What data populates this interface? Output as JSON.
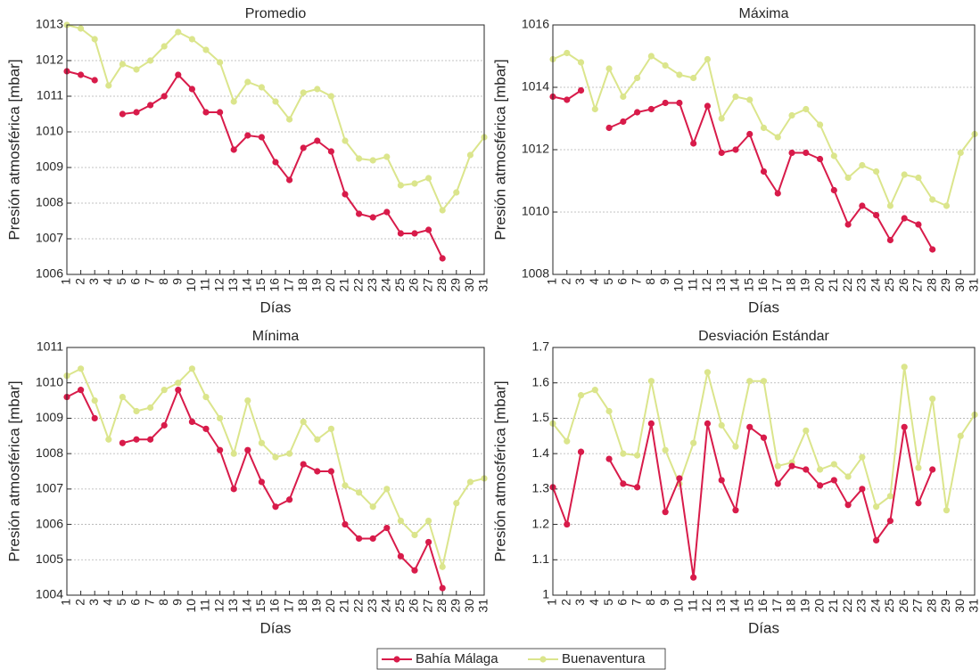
{
  "chart_data": [
    {
      "type": "line",
      "title": "Promedio",
      "xlabel": "Días",
      "ylabel": "Presión atmosférica [mbar]",
      "x": [
        1,
        2,
        3,
        4,
        5,
        6,
        7,
        8,
        9,
        10,
        11,
        12,
        13,
        14,
        15,
        16,
        17,
        18,
        19,
        20,
        21,
        22,
        23,
        24,
        25,
        26,
        27,
        28,
        29,
        30,
        31
      ],
      "xlim": [
        1,
        31
      ],
      "xticks": [
        1,
        2,
        3,
        4,
        5,
        6,
        7,
        8,
        9,
        10,
        11,
        12,
        13,
        14,
        15,
        16,
        17,
        18,
        19,
        20,
        21,
        22,
        23,
        24,
        25,
        26,
        27,
        28,
        29,
        30,
        31
      ],
      "ylim": [
        1006,
        1013
      ],
      "yticks": [
        1006,
        1007,
        1008,
        1009,
        1010,
        1011,
        1012,
        1013
      ],
      "grid": true,
      "series": [
        {
          "name": "Bahía Málaga",
          "color": "#d81b4a",
          "values": [
            1011.7,
            1011.6,
            1011.45,
            null,
            1010.5,
            1010.55,
            1010.75,
            1011.0,
            1011.6,
            1011.2,
            1010.55,
            1010.55,
            1009.5,
            1009.9,
            1009.85,
            1009.15,
            1008.65,
            1009.55,
            1009.75,
            1009.45,
            1008.25,
            1007.7,
            1007.6,
            1007.75,
            1007.15,
            1007.15,
            1007.25,
            1006.45,
            null,
            null,
            null
          ]
        },
        {
          "name": "Buenaventura",
          "color": "#dbe58c",
          "values": [
            1013.0,
            1012.9,
            1012.6,
            1011.3,
            1011.9,
            1011.75,
            1012.0,
            1012.4,
            1012.8,
            1012.6,
            1012.3,
            1011.95,
            1010.85,
            1011.4,
            1011.25,
            1010.85,
            1010.35,
            1011.1,
            1011.2,
            1011.0,
            1009.75,
            1009.25,
            1009.2,
            1009.3,
            1008.5,
            1008.55,
            1008.7,
            1007.8,
            1008.3,
            1009.35,
            1009.85
          ]
        }
      ]
    },
    {
      "type": "line",
      "title": "Máxima",
      "xlabel": "Días",
      "ylabel": "Presión atmosférica [mbar]",
      "x": [
        1,
        2,
        3,
        4,
        5,
        6,
        7,
        8,
        9,
        10,
        11,
        12,
        13,
        14,
        15,
        16,
        17,
        18,
        19,
        20,
        21,
        22,
        23,
        24,
        25,
        26,
        27,
        28,
        29,
        30,
        31
      ],
      "xlim": [
        1,
        31
      ],
      "xticks": [
        1,
        2,
        3,
        4,
        5,
        6,
        7,
        8,
        9,
        10,
        11,
        12,
        13,
        14,
        15,
        16,
        17,
        18,
        19,
        20,
        21,
        22,
        23,
        24,
        25,
        26,
        27,
        28,
        29,
        30,
        31
      ],
      "ylim": [
        1008,
        1016
      ],
      "yticks": [
        1008,
        1010,
        1012,
        1014,
        1016
      ],
      "grid": true,
      "series": [
        {
          "name": "Bahía Málaga",
          "color": "#d81b4a",
          "values": [
            1013.7,
            1013.6,
            1013.9,
            null,
            1012.7,
            1012.9,
            1013.2,
            1013.3,
            1013.5,
            1013.5,
            1012.2,
            1013.4,
            1011.9,
            1012.0,
            1012.5,
            1011.3,
            1010.6,
            1011.9,
            1011.9,
            1011.7,
            1010.7,
            1009.6,
            1010.2,
            1009.9,
            1009.1,
            1009.8,
            1009.6,
            1008.8,
            null,
            null,
            null
          ]
        },
        {
          "name": "Buenaventura",
          "color": "#dbe58c",
          "values": [
            1014.9,
            1015.1,
            1014.8,
            1013.3,
            1014.6,
            1013.7,
            1014.3,
            1015.0,
            1014.7,
            1014.4,
            1014.3,
            1014.9,
            1013.0,
            1013.7,
            1013.6,
            1012.7,
            1012.4,
            1013.1,
            1013.3,
            1012.8,
            1011.8,
            1011.1,
            1011.5,
            1011.3,
            1010.2,
            1011.2,
            1011.1,
            1010.4,
            1010.2,
            1011.9,
            1012.5
          ]
        }
      ]
    },
    {
      "type": "line",
      "title": "Mínima",
      "xlabel": "Días",
      "ylabel": "Presión atmosférica [mbar]",
      "x": [
        1,
        2,
        3,
        4,
        5,
        6,
        7,
        8,
        9,
        10,
        11,
        12,
        13,
        14,
        15,
        16,
        17,
        18,
        19,
        20,
        21,
        22,
        23,
        24,
        25,
        26,
        27,
        28,
        29,
        30,
        31
      ],
      "xlim": [
        1,
        31
      ],
      "xticks": [
        1,
        2,
        3,
        4,
        5,
        6,
        7,
        8,
        9,
        10,
        11,
        12,
        13,
        14,
        15,
        16,
        17,
        18,
        19,
        20,
        21,
        22,
        23,
        24,
        25,
        26,
        27,
        28,
        29,
        30,
        31
      ],
      "ylim": [
        1004,
        1011
      ],
      "yticks": [
        1004,
        1005,
        1006,
        1007,
        1008,
        1009,
        1010,
        1011
      ],
      "grid": true,
      "series": [
        {
          "name": "Bahía Málaga",
          "color": "#d81b4a",
          "values": [
            1009.6,
            1009.8,
            1009.0,
            null,
            1008.3,
            1008.4,
            1008.4,
            1008.8,
            1009.8,
            1008.9,
            1008.7,
            1008.1,
            1007.0,
            1008.1,
            1007.2,
            1006.5,
            1006.7,
            1007.7,
            1007.5,
            1007.5,
            1006.0,
            1005.6,
            1005.6,
            1005.9,
            1005.1,
            1004.7,
            1005.5,
            1004.2,
            null,
            null,
            null
          ]
        },
        {
          "name": "Buenaventura",
          "color": "#dbe58c",
          "values": [
            1010.2,
            1010.4,
            1009.5,
            1008.4,
            1009.6,
            1009.2,
            1009.3,
            1009.8,
            1010.0,
            1010.4,
            1009.6,
            1009.0,
            1008.0,
            1009.5,
            1008.3,
            1007.9,
            1008.0,
            1008.9,
            1008.4,
            1008.7,
            1007.1,
            1006.9,
            1006.5,
            1007.0,
            1006.1,
            1005.7,
            1006.1,
            1004.8,
            1006.6,
            1007.2,
            1007.3
          ]
        }
      ]
    },
    {
      "type": "line",
      "title": "Desviación Estándar",
      "xlabel": "Días",
      "ylabel": "Presión atmosférica [mbar]",
      "x": [
        1,
        2,
        3,
        4,
        5,
        6,
        7,
        8,
        9,
        10,
        11,
        12,
        13,
        14,
        15,
        16,
        17,
        18,
        19,
        20,
        21,
        22,
        23,
        24,
        25,
        26,
        27,
        28,
        29,
        30,
        31
      ],
      "xlim": [
        1,
        31
      ],
      "xticks": [
        1,
        2,
        3,
        4,
        5,
        6,
        7,
        8,
        9,
        10,
        11,
        12,
        13,
        14,
        15,
        16,
        17,
        18,
        19,
        20,
        21,
        22,
        23,
        24,
        25,
        26,
        27,
        28,
        29,
        30,
        31
      ],
      "ylim": [
        1,
        1.7
      ],
      "yticks": [
        1,
        1.1,
        1.2,
        1.3,
        1.4,
        1.5,
        1.6,
        1.7
      ],
      "grid": true,
      "series": [
        {
          "name": "Bahía Málaga",
          "color": "#d81b4a",
          "values": [
            1.305,
            1.2,
            1.405,
            null,
            1.385,
            1.315,
            1.305,
            1.485,
            1.235,
            1.33,
            1.05,
            1.485,
            1.325,
            1.24,
            1.475,
            1.445,
            1.315,
            1.365,
            1.355,
            1.31,
            1.325,
            1.255,
            1.3,
            1.155,
            1.21,
            1.475,
            1.26,
            1.355,
            null,
            null,
            null
          ]
        },
        {
          "name": "Buenaventura",
          "color": "#dbe58c",
          "values": [
            1.485,
            1.435,
            1.565,
            1.58,
            1.52,
            1.4,
            1.395,
            1.605,
            1.41,
            1.315,
            1.43,
            1.63,
            1.48,
            1.42,
            1.605,
            1.605,
            1.365,
            1.375,
            1.465,
            1.355,
            1.37,
            1.335,
            1.39,
            1.25,
            1.28,
            1.645,
            1.36,
            1.555,
            1.24,
            1.45,
            1.51
          ]
        }
      ]
    }
  ]
}
